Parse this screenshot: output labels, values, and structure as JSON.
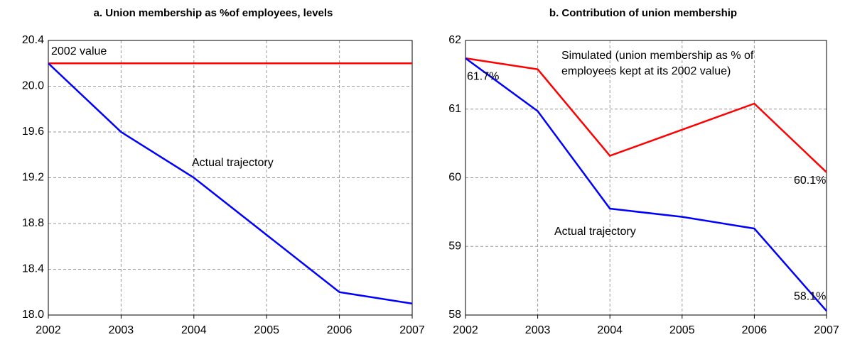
{
  "chart_data": [
    {
      "type": "line",
      "title": "a. Union membership as %of employees, levels",
      "x": [
        2002,
        2003,
        2004,
        2005,
        2006,
        2007
      ],
      "xlim": [
        2002,
        2007
      ],
      "xticks": [
        2002,
        2003,
        2004,
        2005,
        2006,
        2007
      ],
      "ylim": [
        18.0,
        20.4
      ],
      "yticks": [
        {
          "value": 18,
          "label": "18.0"
        },
        18.4,
        18.8,
        19.2,
        19.6,
        {
          "value": 20,
          "label": "20.0"
        },
        20.4
      ],
      "grid": true,
      "series": [
        {
          "name": "2002 value",
          "color": "#ff0000",
          "values": [
            20.2,
            20.2,
            20.2,
            20.2,
            20.2,
            20.2
          ]
        },
        {
          "name": "Actual trajectory",
          "color": "#0000ff",
          "values": [
            20.2,
            19.6,
            19.2,
            18.7,
            18.2,
            18.1
          ]
        }
      ]
    },
    {
      "type": "line",
      "title": "b. Contribution of union membership",
      "x": [
        2002,
        2003,
        2004,
        2005,
        2006,
        2007
      ],
      "xlim": [
        2002,
        2007
      ],
      "xticks": [
        2002,
        2003,
        2004,
        2005,
        2006,
        2007
      ],
      "ylim": [
        58,
        62
      ],
      "yticks": [
        58,
        59,
        60,
        61,
        62
      ],
      "grid": true,
      "series": [
        {
          "name": "Simulated (union membership as % of employees kept at its 2002 value)",
          "color": "#ff0000",
          "values": [
            61.74,
            61.58,
            60.32,
            60.7,
            61.08,
            60.08
          ],
          "value_labels": [
            null,
            null,
            null,
            null,
            null,
            "60.1%"
          ]
        },
        {
          "name": "Actual trajectory",
          "color": "#0000ff",
          "values": [
            61.74,
            60.97,
            59.55,
            59.43,
            59.26,
            58.06
          ],
          "value_labels": [
            "61.7%",
            null,
            null,
            null,
            null,
            "58.1%"
          ]
        }
      ]
    }
  ]
}
